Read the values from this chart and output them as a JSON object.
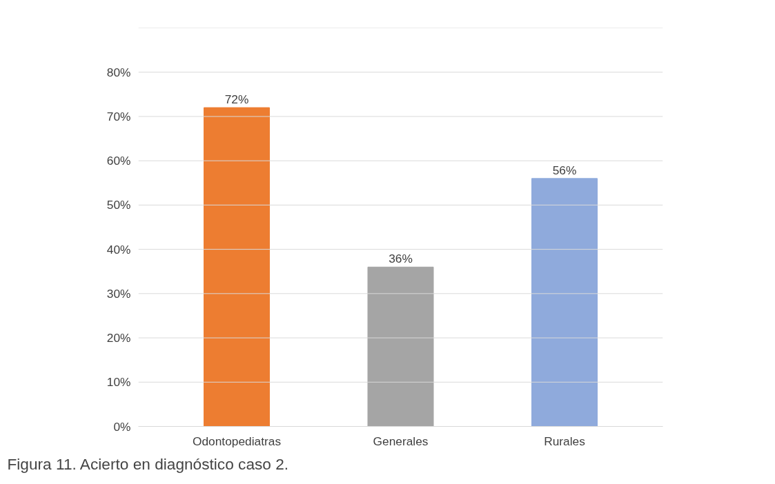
{
  "chart_data": {
    "type": "bar",
    "categories": [
      "Odontopediatras",
      "Generales",
      "Rurales"
    ],
    "values": [
      72,
      36,
      56
    ],
    "colors": [
      "#ed7d31",
      "#a5a5a5",
      "#8faadc"
    ],
    "value_labels": [
      "72%",
      "36%",
      "56%"
    ],
    "ylim": [
      0,
      90
    ],
    "yticks": [
      {
        "value": 0,
        "label": "0%"
      },
      {
        "value": 10,
        "label": "10%"
      },
      {
        "value": 20,
        "label": "20%"
      },
      {
        "value": 30,
        "label": "30%"
      },
      {
        "value": 40,
        "label": "40%"
      },
      {
        "value": 50,
        "label": "50%"
      },
      {
        "value": 60,
        "label": "60%"
      },
      {
        "value": 70,
        "label": "70%"
      },
      {
        "value": 80,
        "label": "80%"
      },
      {
        "value": 90,
        "label": null
      }
    ],
    "grid": "y",
    "annotations": [
      "Figura 11. Acierto en diagnóstico caso 2."
    ]
  }
}
